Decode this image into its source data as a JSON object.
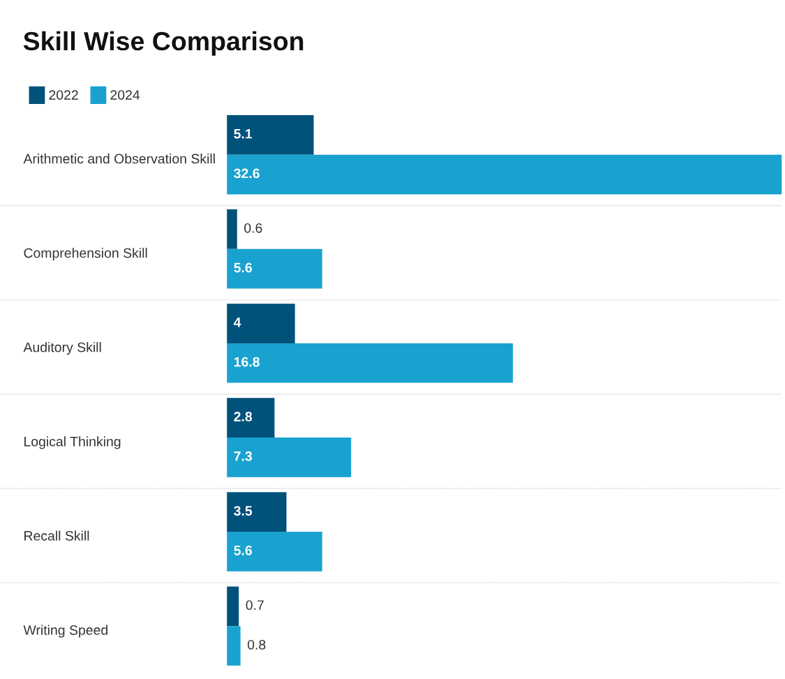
{
  "chart_data": {
    "type": "bar",
    "orientation": "horizontal",
    "title": "Skill Wise Comparison",
    "categories": [
      "Arithmetic and Observation Skill",
      "Comprehension Skill",
      "Auditory Skill",
      "Logical Thinking",
      "Recall Skill",
      "Writing Speed"
    ],
    "series": [
      {
        "name": "2022",
        "color": "#00527a",
        "values": [
          5.1,
          0.6,
          4,
          2.8,
          3.5,
          0.7
        ]
      },
      {
        "name": "2024",
        "color": "#19a2cf",
        "values": [
          32.6,
          5.6,
          16.8,
          7.3,
          5.6,
          0.8
        ]
      }
    ],
    "data_labels": true,
    "legend": "top left",
    "grid": "y",
    "tick_labels": "y"
  }
}
